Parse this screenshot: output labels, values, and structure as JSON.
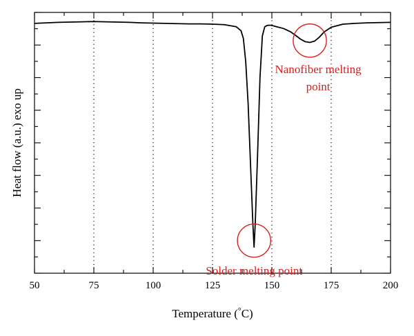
{
  "chart_data": {
    "type": "line",
    "title": "",
    "xlabel_pre": "Temperature (",
    "xlabel_deg": "°",
    "xlabel_post": "C)",
    "ylabel": "Heat flow (a.u.) exo up",
    "xlim": [
      50,
      200
    ],
    "ylim": [
      0,
      10
    ],
    "x_ticks": [
      50,
      75,
      100,
      125,
      150,
      175,
      200
    ],
    "x_tick_labels": [
      "50",
      "75",
      "100",
      "125",
      "150",
      "175",
      "200"
    ],
    "x_minor_step": 12.5,
    "y_tick_count": 8,
    "y_tick_labels_shown": false,
    "vertical_grid": "dotted",
    "vertical_grid_at": [
      75,
      100,
      125,
      150,
      175
    ],
    "line_color": "#000000",
    "annotation_color": "#d42020",
    "series": [
      {
        "x": [
          50,
          55,
          60,
          65,
          70,
          75,
          80,
          85,
          90,
          95,
          100,
          105,
          110,
          115,
          120,
          125,
          130,
          135,
          137,
          138,
          139,
          140,
          141,
          142,
          142.5,
          143,
          144,
          145,
          146,
          147,
          148,
          149,
          150,
          152,
          155,
          158,
          160,
          162,
          164,
          166,
          168,
          170,
          172,
          175,
          180,
          185,
          190,
          195,
          200
        ],
        "y": [
          9.58,
          9.6,
          9.62,
          9.63,
          9.64,
          9.65,
          9.64,
          9.63,
          9.62,
          9.6,
          9.59,
          9.58,
          9.57,
          9.56,
          9.56,
          9.55,
          9.53,
          9.45,
          9.3,
          9.0,
          8.1,
          6.5,
          4.2,
          1.9,
          1.0,
          1.9,
          4.6,
          7.5,
          9.1,
          9.45,
          9.5,
          9.51,
          9.5,
          9.45,
          9.38,
          9.25,
          9.12,
          8.98,
          8.88,
          8.85,
          8.9,
          9.05,
          9.25,
          9.43,
          9.55,
          9.58,
          9.6,
          9.61,
          9.62
        ]
      }
    ],
    "annotations": [
      {
        "label_lines": [
          "Solder melting point"
        ],
        "circle_center": [
          142.5,
          1.25
        ],
        "circle_radius_x": 7.0
      },
      {
        "label_lines": [
          "Nanofiber melting",
          "point"
        ],
        "circle_center": [
          166,
          8.92
        ],
        "circle_radius_x": 7.0
      }
    ]
  }
}
